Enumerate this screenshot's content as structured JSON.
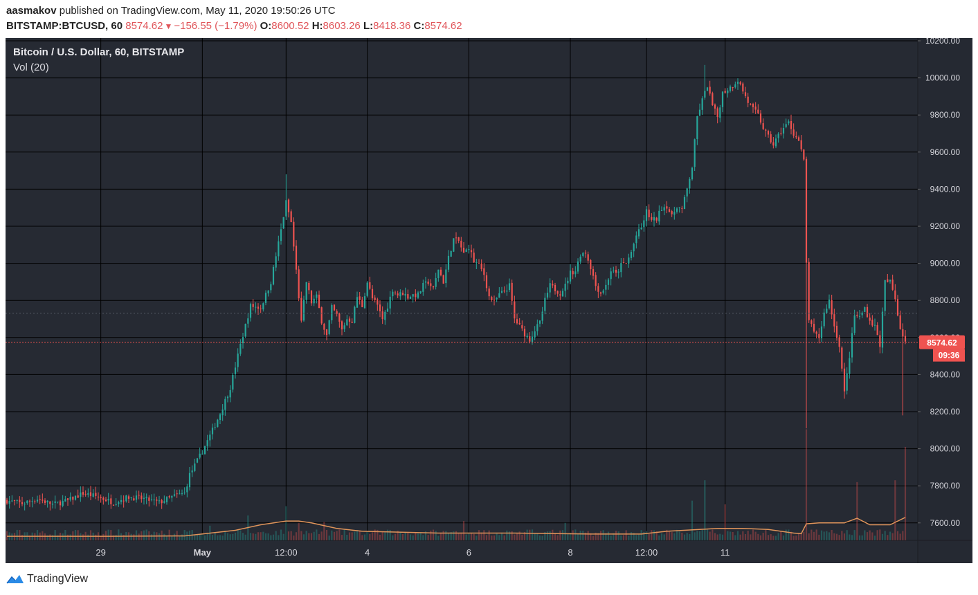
{
  "header": {
    "publisher": "aasmakov",
    "published_text": "published on TradingView.com, May 11, 2020 19:50:26 UTC",
    "symbol": "BITSTAMP:BTCUSD, 60",
    "last": "8574.62",
    "change_arrow": "▼",
    "change": "−156.55 (−1.79%)",
    "o_label": "O:",
    "o": "8600.52",
    "h_label": "H:",
    "h": "8603.26",
    "l_label": "L:",
    "l": "8418.36",
    "c_label": "C:",
    "c": "8574.62"
  },
  "chart_title": "Bitcoin / U.S. Dollar, 60, BITSTAMP",
  "volume_label": "Vol (20)",
  "price_badge": "8574.62",
  "countdown_badge": "09:36",
  "footer": {
    "logo_text": "TradingView",
    "logo_icon": "tradingview-logo-icon"
  },
  "colors": {
    "background": "#262a33",
    "grid": "#000000",
    "up": "#26a69a",
    "down": "#ef5350",
    "vol_ma": "#e0945a",
    "badge": "#ef5350"
  },
  "chart_data": {
    "type": "candlestick",
    "title": "Bitcoin / U.S. Dollar, 60, BITSTAMP",
    "x_tick_labels": [
      "29",
      "May",
      "12:00",
      "4",
      "6",
      "8",
      "12:00",
      "11"
    ],
    "y_tick_labels": [
      "7600.00",
      "7800.00",
      "8000.00",
      "8200.00",
      "8400.00",
      "8600.00",
      "8800.00",
      "9000.00",
      "9200.00",
      "9400.00",
      "9600.00",
      "9800.00",
      "10000.00",
      "10200.00"
    ],
    "ylim": [
      7500,
      10210
    ],
    "last_price": 8574.62,
    "prev_close_line": 8731,
    "series": [
      {
        "name": "BTCUSD",
        "close_path": [
          [
            0,
            7720
          ],
          [
            6,
            7705
          ],
          [
            12,
            7730
          ],
          [
            18,
            7700
          ],
          [
            24,
            7720
          ],
          [
            30,
            7760
          ],
          [
            36,
            7740
          ],
          [
            42,
            7710
          ],
          [
            48,
            7740
          ],
          [
            54,
            7730
          ],
          [
            60,
            7710
          ],
          [
            66,
            7745
          ],
          [
            70,
            7760
          ],
          [
            72,
            7860
          ],
          [
            76,
            7960
          ],
          [
            80,
            8070
          ],
          [
            84,
            8190
          ],
          [
            88,
            8330
          ],
          [
            92,
            8560
          ],
          [
            96,
            8770
          ],
          [
            100,
            8760
          ],
          [
            104,
            8900
          ],
          [
            108,
            9180
          ],
          [
            110,
            9330
          ],
          [
            112,
            9220
          ],
          [
            114,
            8960
          ],
          [
            116,
            8680
          ],
          [
            118,
            8900
          ],
          [
            120,
            8790
          ],
          [
            122,
            8820
          ],
          [
            124,
            8690
          ],
          [
            126,
            8610
          ],
          [
            128,
            8760
          ],
          [
            130,
            8720
          ],
          [
            132,
            8640
          ],
          [
            134,
            8700
          ],
          [
            136,
            8690
          ],
          [
            138,
            8820
          ],
          [
            140,
            8770
          ],
          [
            142,
            8900
          ],
          [
            144,
            8810
          ],
          [
            146,
            8770
          ],
          [
            148,
            8700
          ],
          [
            150,
            8770
          ],
          [
            152,
            8860
          ],
          [
            154,
            8830
          ],
          [
            156,
            8840
          ],
          [
            158,
            8820
          ],
          [
            160,
            8830
          ],
          [
            162,
            8830
          ],
          [
            164,
            8880
          ],
          [
            166,
            8900
          ],
          [
            168,
            8860
          ],
          [
            170,
            8970
          ],
          [
            172,
            8900
          ],
          [
            174,
            9030
          ],
          [
            176,
            9130
          ],
          [
            178,
            9120
          ],
          [
            180,
            9050
          ],
          [
            182,
            9090
          ],
          [
            184,
            9010
          ],
          [
            186,
            8990
          ],
          [
            188,
            8940
          ],
          [
            190,
            8820
          ],
          [
            192,
            8790
          ],
          [
            194,
            8830
          ],
          [
            196,
            8850
          ],
          [
            198,
            8880
          ],
          [
            200,
            8700
          ],
          [
            202,
            8660
          ],
          [
            204,
            8620
          ],
          [
            206,
            8590
          ],
          [
            208,
            8640
          ],
          [
            210,
            8680
          ],
          [
            212,
            8800
          ],
          [
            214,
            8880
          ],
          [
            216,
            8860
          ],
          [
            218,
            8840
          ],
          [
            220,
            8880
          ],
          [
            222,
            8950
          ],
          [
            224,
            8960
          ],
          [
            226,
            9050
          ],
          [
            228,
            9060
          ],
          [
            230,
            8980
          ],
          [
            232,
            8880
          ],
          [
            234,
            8840
          ],
          [
            236,
            8880
          ],
          [
            238,
            8960
          ],
          [
            240,
            8940
          ],
          [
            242,
            8990
          ],
          [
            244,
            9000
          ],
          [
            246,
            9060
          ],
          [
            248,
            9150
          ],
          [
            250,
            9190
          ],
          [
            252,
            9280
          ],
          [
            254,
            9230
          ],
          [
            256,
            9240
          ],
          [
            258,
            9300
          ],
          [
            260,
            9310
          ],
          [
            262,
            9250
          ],
          [
            264,
            9310
          ],
          [
            266,
            9290
          ],
          [
            268,
            9400
          ],
          [
            270,
            9520
          ],
          [
            272,
            9790
          ],
          [
            274,
            9880
          ],
          [
            276,
            9960
          ],
          [
            278,
            9850
          ],
          [
            280,
            9790
          ],
          [
            282,
            9920
          ],
          [
            284,
            9940
          ],
          [
            286,
            9960
          ],
          [
            288,
            9990
          ],
          [
            290,
            9930
          ],
          [
            292,
            9870
          ],
          [
            294,
            9830
          ],
          [
            296,
            9800
          ],
          [
            298,
            9730
          ],
          [
            300,
            9680
          ],
          [
            302,
            9640
          ],
          [
            304,
            9690
          ],
          [
            306,
            9730
          ],
          [
            308,
            9760
          ],
          [
            310,
            9700
          ],
          [
            312,
            9660
          ],
          [
            314,
            9550
          ],
          [
            315,
            9000
          ],
          [
            316,
            8700
          ],
          [
            318,
            8620
          ],
          [
            320,
            8600
          ],
          [
            322,
            8730
          ],
          [
            324,
            8800
          ],
          [
            326,
            8660
          ],
          [
            328,
            8560
          ],
          [
            330,
            8300
          ],
          [
            332,
            8500
          ],
          [
            334,
            8720
          ],
          [
            336,
            8710
          ],
          [
            338,
            8760
          ],
          [
            340,
            8690
          ],
          [
            342,
            8660
          ],
          [
            344,
            8560
          ],
          [
            346,
            8900
          ],
          [
            348,
            8900
          ],
          [
            350,
            8810
          ],
          [
            352,
            8650
          ],
          [
            354,
            8580
          ]
        ]
      }
    ],
    "volume_ma": {
      "name": "Vol (20)",
      "points": [
        [
          0,
          7528
        ],
        [
          40,
          7528
        ],
        [
          70,
          7530
        ],
        [
          90,
          7560
        ],
        [
          100,
          7590
        ],
        [
          110,
          7610
        ],
        [
          115,
          7610
        ],
        [
          120,
          7600
        ],
        [
          130,
          7570
        ],
        [
          140,
          7555
        ],
        [
          170,
          7545
        ],
        [
          200,
          7545
        ],
        [
          230,
          7540
        ],
        [
          250,
          7540
        ],
        [
          260,
          7555
        ],
        [
          280,
          7570
        ],
        [
          290,
          7570
        ],
        [
          300,
          7565
        ],
        [
          310,
          7545
        ],
        [
          313,
          7542
        ],
        [
          315,
          7595
        ],
        [
          320,
          7600
        ],
        [
          330,
          7600
        ],
        [
          335,
          7625
        ],
        [
          340,
          7590
        ],
        [
          348,
          7590
        ],
        [
          354,
          7630
        ]
      ]
    },
    "volume": {
      "peaks": [
        [
          0,
          7528
        ],
        [
          30,
          7525
        ],
        [
          80,
          7585
        ],
        [
          95,
          7640
        ],
        [
          110,
          7690
        ],
        [
          115,
          7600
        ],
        [
          125,
          7605
        ],
        [
          180,
          7610
        ],
        [
          220,
          7600
        ],
        [
          270,
          7720
        ],
        [
          275,
          7830
        ],
        [
          283,
          7700
        ],
        [
          315,
          8105
        ],
        [
          335,
          7820
        ],
        [
          350,
          7830
        ],
        [
          354,
          8010
        ]
      ]
    },
    "grid": true,
    "legend": "top-left"
  }
}
